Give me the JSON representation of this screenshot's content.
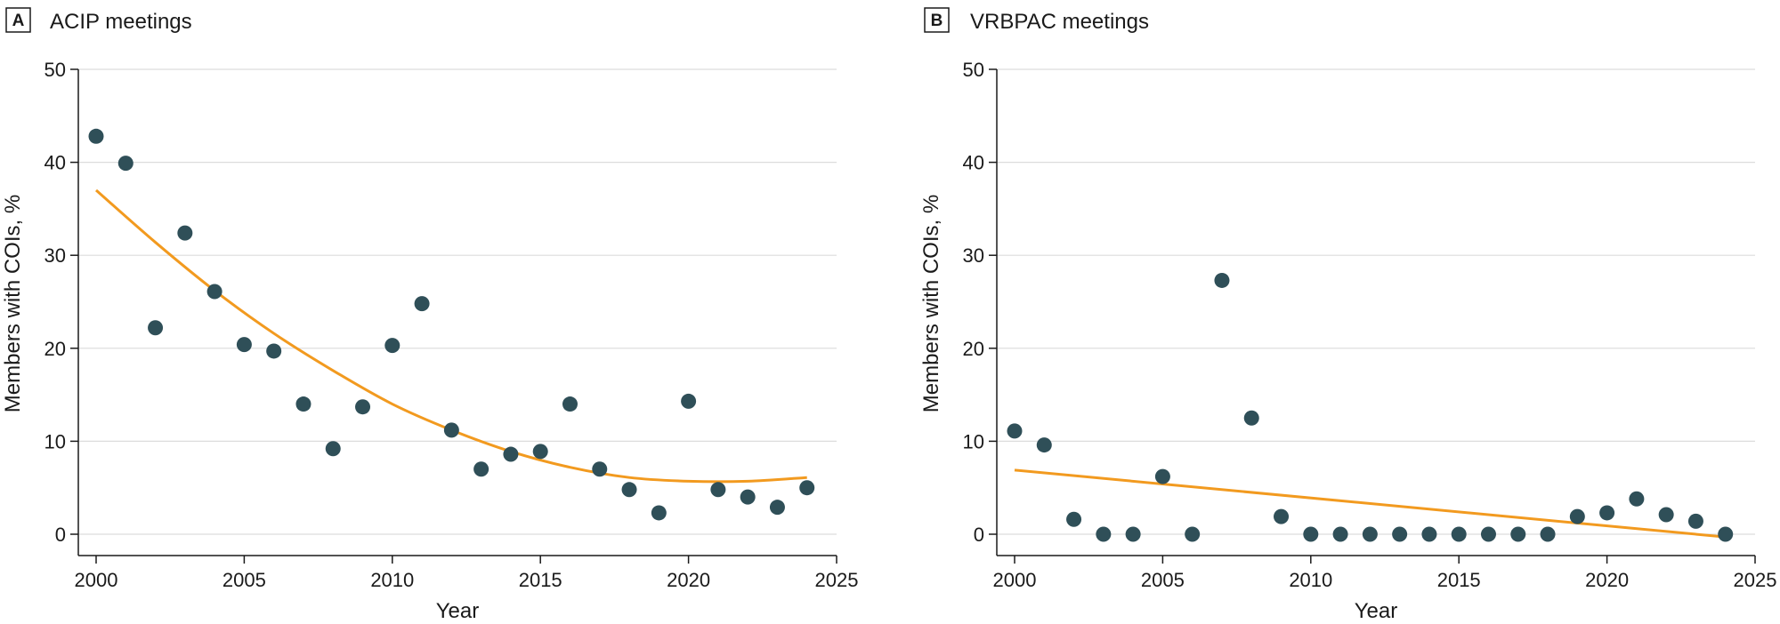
{
  "chart_data": [
    {
      "panel_letter": "A",
      "title": "ACIP meetings",
      "type": "scatter",
      "xlabel": "Year",
      "ylabel": "Members with COIs, %",
      "xlim": [
        2000,
        2025
      ],
      "ylim": [
        0,
        50
      ],
      "xticks": [
        2000,
        2005,
        2010,
        2015,
        2020,
        2025
      ],
      "yticks": [
        0,
        10,
        20,
        30,
        40,
        50
      ],
      "grid": "horizontal",
      "point_color": "#2f4f58",
      "trend_color": "#f29a1f",
      "points": [
        {
          "x": 2000,
          "y": 42.8
        },
        {
          "x": 2001,
          "y": 39.9
        },
        {
          "x": 2002,
          "y": 22.2
        },
        {
          "x": 2003,
          "y": 32.4
        },
        {
          "x": 2004,
          "y": 26.1
        },
        {
          "x": 2005,
          "y": 20.4
        },
        {
          "x": 2006,
          "y": 19.7
        },
        {
          "x": 2007,
          "y": 14.0
        },
        {
          "x": 2008,
          "y": 9.2
        },
        {
          "x": 2009,
          "y": 13.7
        },
        {
          "x": 2010,
          "y": 20.3
        },
        {
          "x": 2011,
          "y": 24.8
        },
        {
          "x": 2012,
          "y": 11.2
        },
        {
          "x": 2013,
          "y": 7.0
        },
        {
          "x": 2014,
          "y": 8.6
        },
        {
          "x": 2015,
          "y": 8.9
        },
        {
          "x": 2016,
          "y": 14.0
        },
        {
          "x": 2017,
          "y": 7.0
        },
        {
          "x": 2018,
          "y": 4.8
        },
        {
          "x": 2019,
          "y": 2.3
        },
        {
          "x": 2020,
          "y": 14.3
        },
        {
          "x": 2021,
          "y": 4.8
        },
        {
          "x": 2022,
          "y": 4.0
        },
        {
          "x": 2023,
          "y": 2.9
        },
        {
          "x": 2024,
          "y": 5.0
        }
      ],
      "trend": {
        "kind": "quadratic",
        "x": [
          2000,
          2002,
          2004,
          2006,
          2008,
          2010,
          2012,
          2014,
          2016,
          2018,
          2020,
          2022,
          2024
        ],
        "y": [
          37.0,
          31.4,
          26.2,
          21.6,
          17.6,
          14.0,
          11.2,
          8.9,
          7.2,
          6.1,
          5.7,
          5.7,
          6.1
        ]
      }
    },
    {
      "panel_letter": "B",
      "title": "VRBPAC meetings",
      "type": "scatter",
      "xlabel": "Year",
      "ylabel": "Members with COIs, %",
      "xlim": [
        2000,
        2025
      ],
      "ylim": [
        0,
        50
      ],
      "xticks": [
        2000,
        2005,
        2010,
        2015,
        2020,
        2025
      ],
      "yticks": [
        0,
        10,
        20,
        30,
        40,
        50
      ],
      "grid": "horizontal",
      "point_color": "#2f4f58",
      "trend_color": "#f29a1f",
      "points": [
        {
          "x": 2000,
          "y": 11.1
        },
        {
          "x": 2001,
          "y": 9.6
        },
        {
          "x": 2002,
          "y": 1.6
        },
        {
          "x": 2003,
          "y": 0.0
        },
        {
          "x": 2004,
          "y": 0.0
        },
        {
          "x": 2005,
          "y": 6.2
        },
        {
          "x": 2006,
          "y": 0.0
        },
        {
          "x": 2007,
          "y": 27.3
        },
        {
          "x": 2008,
          "y": 12.5
        },
        {
          "x": 2009,
          "y": 1.9
        },
        {
          "x": 2010,
          "y": 0.0
        },
        {
          "x": 2011,
          "y": 0.0
        },
        {
          "x": 2012,
          "y": 0.0
        },
        {
          "x": 2013,
          "y": 0.0
        },
        {
          "x": 2014,
          "y": 0.0
        },
        {
          "x": 2015,
          "y": 0.0
        },
        {
          "x": 2016,
          "y": 0.0
        },
        {
          "x": 2017,
          "y": 0.0
        },
        {
          "x": 2018,
          "y": 0.0
        },
        {
          "x": 2019,
          "y": 1.9
        },
        {
          "x": 2020,
          "y": 2.3
        },
        {
          "x": 2021,
          "y": 3.8
        },
        {
          "x": 2022,
          "y": 2.1
        },
        {
          "x": 2023,
          "y": 1.4
        },
        {
          "x": 2024,
          "y": 0.0
        }
      ],
      "trend": {
        "kind": "linear",
        "x": [
          2000,
          2024
        ],
        "y": [
          6.9,
          -0.3
        ]
      }
    }
  ]
}
